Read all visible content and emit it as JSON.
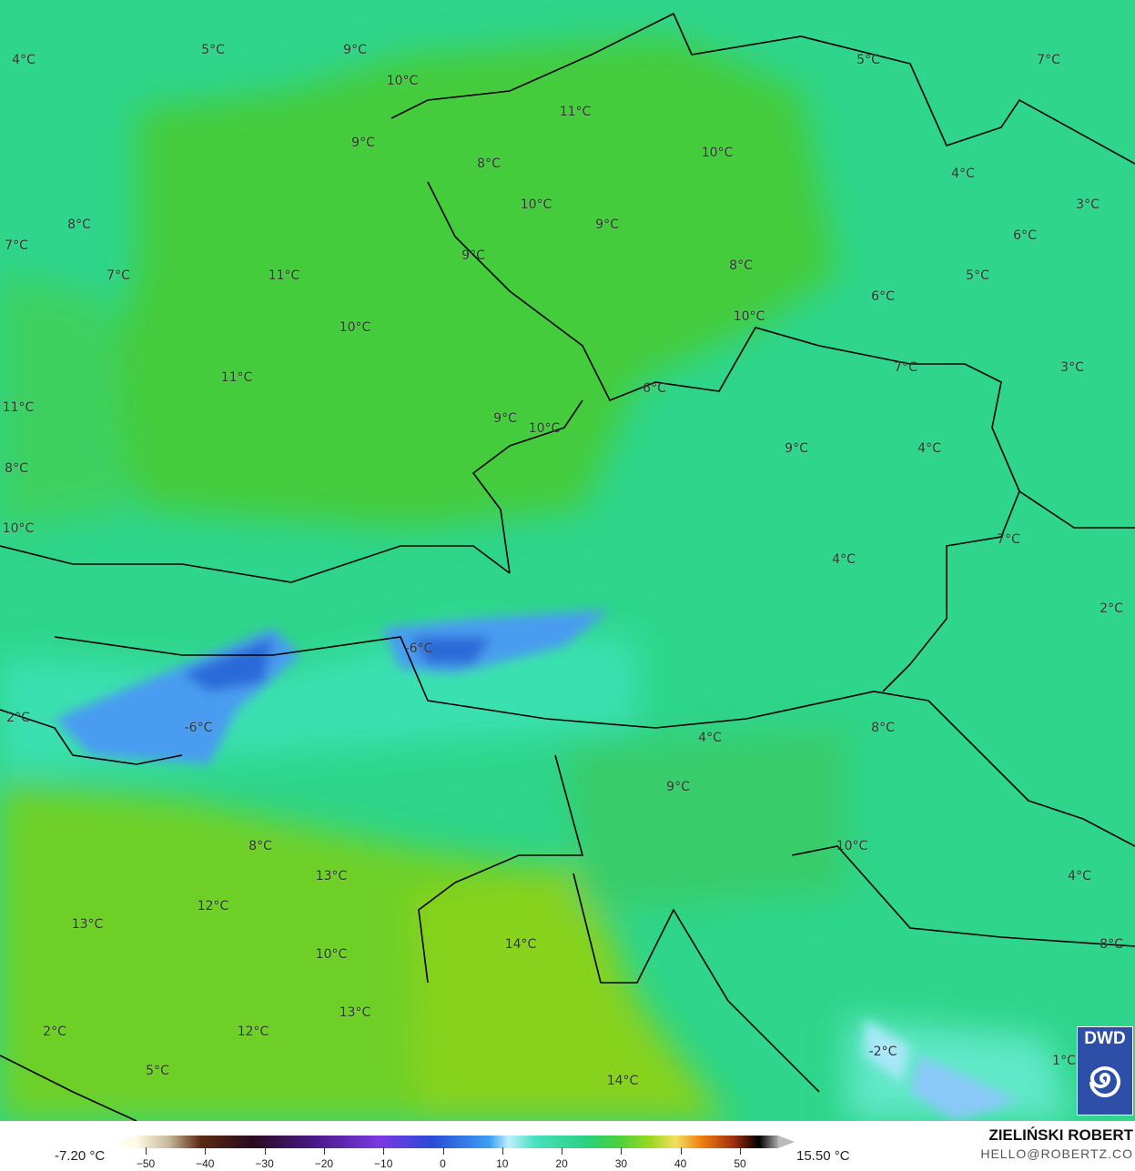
{
  "map": {
    "unit": "°C",
    "labels": [
      "4°C",
      "5°C",
      "9°C",
      "10°C",
      "5°C",
      "7°C",
      "11°C",
      "9°C",
      "10°C",
      "8°C",
      "4°C",
      "10°C",
      "3°C",
      "9°C",
      "8°C",
      "6°C",
      "7°C",
      "9°C",
      "8°C",
      "11°C",
      "7°C",
      "5°C",
      "6°C",
      "10°C",
      "10°C",
      "7°C",
      "3°C",
      "11°C",
      "6°C",
      "11°C",
      "9°C",
      "10°C",
      "9°C",
      "4°C",
      "8°C",
      "10°C",
      "7°C",
      "4°C",
      "2°C",
      "-6°C",
      "2°C",
      "-6°C",
      "8°C",
      "4°C",
      "9°C",
      "10°C",
      "8°C",
      "13°C",
      "4°C",
      "12°C",
      "13°C",
      "14°C",
      "8°C",
      "10°C",
      "13°C",
      "12°C",
      "2°C",
      "-2°C",
      "1°C",
      "5°C",
      "14°C"
    ],
    "colors": {
      "base": "#2ed58a",
      "green": "#44cc3c",
      "cold": "#3a8ce8",
      "warm": "#86d21a",
      "border": "#000000"
    }
  },
  "legend": {
    "min": "-7.20 °C",
    "max": "15.50 °C",
    "ticks": [
      "−50",
      "−40",
      "−30",
      "−20",
      "−10",
      "0",
      "10",
      "20",
      "30",
      "40",
      "50"
    ]
  },
  "credit": {
    "name": "ZIELIŃSKI ROBERT",
    "email": "HELLO@ROBERTZ.CO"
  },
  "logo": {
    "text": "DWD",
    "icon": "dwd-spiral-icon"
  }
}
